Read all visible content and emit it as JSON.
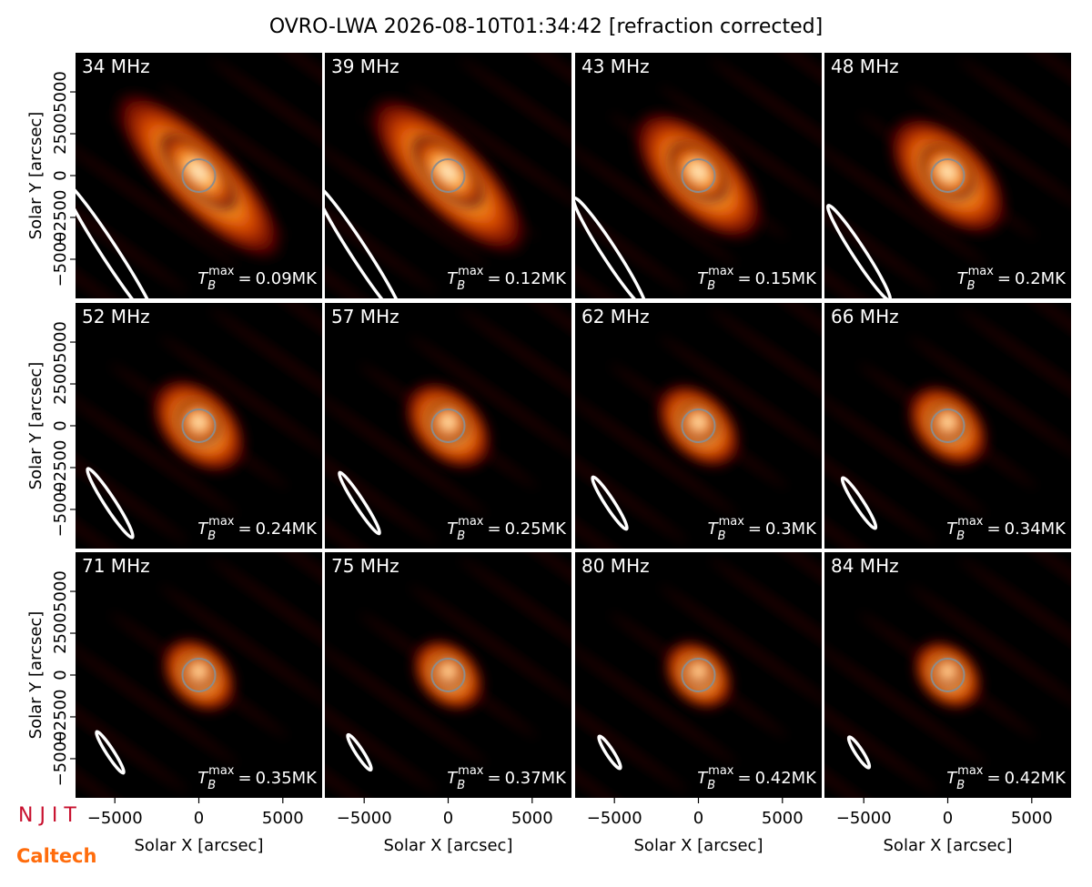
{
  "title": "OVRO-LWA 2026-08-10T01:34:42 [refraction corrected]",
  "xlabel": "Solar X [arcsec]",
  "ylabel": "Solar Y [arcsec]",
  "xlim": [
    -7340,
    7340
  ],
  "ylim": [
    -7340,
    7340
  ],
  "xticks": [
    {
      "value": -5000,
      "label": "−5000"
    },
    0,
    5000
  ],
  "yticks": [
    {
      "value": -5000,
      "label": "−5000"
    },
    {
      "value": -2500,
      "label": "−2500"
    },
    0,
    2500,
    5000
  ],
  "tb_symbol": {
    "base": "T",
    "sub": "B",
    "sup": "max"
  },
  "tb_equals": "=",
  "tb_unit": "MK",
  "panels": [
    {
      "freq": "34 MHz",
      "tb_max": 0.09
    },
    {
      "freq": "39 MHz",
      "tb_max": 0.12
    },
    {
      "freq": "43 MHz",
      "tb_max": 0.15
    },
    {
      "freq": "48 MHz",
      "tb_max": 0.2
    },
    {
      "freq": "52 MHz",
      "tb_max": 0.24
    },
    {
      "freq": "57 MHz",
      "tb_max": 0.25
    },
    {
      "freq": "62 MHz",
      "tb_max": 0.3
    },
    {
      "freq": "66 MHz",
      "tb_max": 0.34
    },
    {
      "freq": "71 MHz",
      "tb_max": 0.35
    },
    {
      "freq": "75 MHz",
      "tb_max": 0.37
    },
    {
      "freq": "80 MHz",
      "tb_max": 0.42
    },
    {
      "freq": "84 MHz",
      "tb_max": 0.42
    }
  ],
  "logos": [
    "N J I T",
    "Caltech"
  ]
}
